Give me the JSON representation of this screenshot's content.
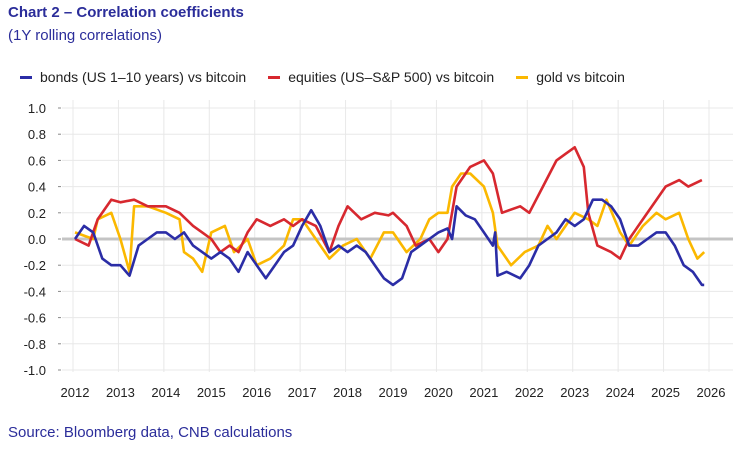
{
  "title": "Chart 2 – Correlation coefficients",
  "subtitle": "(1Y rolling correlations)",
  "source": "Source: Bloomberg data, CNB calculations",
  "chart_data": {
    "type": "line",
    "title": "Chart 2 – Correlation coefficients",
    "subtitle": "(1Y rolling correlations)",
    "xlabel": "",
    "ylabel": "",
    "xlim": [
      2011.7,
      2026.4
    ],
    "ylim": [
      -1.0,
      1.0
    ],
    "x_ticks": [
      "2012",
      "2013",
      "2014",
      "2015",
      "2016",
      "2017",
      "2018",
      "2019",
      "2020",
      "2021",
      "2022",
      "2023",
      "2024",
      "2025",
      "2026"
    ],
    "y_ticks": [
      "1.0",
      "0.8",
      "0.6",
      "0.4",
      "0.2",
      "0.0",
      "-0.2",
      "-0.4",
      "-0.6",
      "-0.8",
      "-1.0"
    ],
    "grid": true,
    "legend_position": "top",
    "series": [
      {
        "name": "bonds (US 1–10 years) vs bitcoin",
        "color": "#2b2da6",
        "x": [
          2012.0,
          2012.2,
          2012.4,
          2012.6,
          2012.8,
          2013.0,
          2013.2,
          2013.4,
          2013.6,
          2013.8,
          2014.0,
          2014.2,
          2014.4,
          2014.6,
          2014.8,
          2015.0,
          2015.2,
          2015.4,
          2015.6,
          2015.8,
          2016.0,
          2016.2,
          2016.4,
          2016.6,
          2016.8,
          2017.0,
          2017.2,
          2017.4,
          2017.6,
          2017.8,
          2018.0,
          2018.2,
          2018.4,
          2018.6,
          2018.8,
          2019.0,
          2019.2,
          2019.4,
          2019.6,
          2019.8,
          2020.0,
          2020.2,
          2020.3,
          2020.4,
          2020.6,
          2020.8,
          2021.0,
          2021.2,
          2021.25,
          2021.3,
          2021.5,
          2021.8,
          2022.0,
          2022.2,
          2022.4,
          2022.6,
          2022.8,
          2023.0,
          2023.2,
          2023.4,
          2023.6,
          2023.8,
          2024.0,
          2024.2,
          2024.4,
          2024.6,
          2024.8,
          2025.0,
          2025.2,
          2025.4,
          2025.6,
          2025.8,
          2025.85
        ],
        "y": [
          0.0,
          0.1,
          0.05,
          -0.15,
          -0.2,
          -0.2,
          -0.28,
          -0.05,
          0.0,
          0.05,
          0.05,
          0.0,
          0.05,
          -0.05,
          -0.1,
          -0.15,
          -0.1,
          -0.15,
          -0.25,
          -0.1,
          -0.2,
          -0.3,
          -0.2,
          -0.1,
          -0.05,
          0.1,
          0.22,
          0.1,
          -0.1,
          -0.05,
          -0.1,
          -0.05,
          -0.1,
          -0.2,
          -0.3,
          -0.35,
          -0.3,
          -0.1,
          -0.05,
          0.0,
          0.05,
          0.08,
          0.0,
          0.25,
          0.18,
          0.15,
          0.05,
          -0.05,
          0.05,
          -0.28,
          -0.25,
          -0.3,
          -0.2,
          -0.05,
          0.0,
          0.05,
          0.15,
          0.1,
          0.15,
          0.3,
          0.3,
          0.25,
          0.15,
          -0.05,
          -0.05,
          0.0,
          0.05,
          0.05,
          -0.05,
          -0.2,
          -0.25,
          -0.35,
          -0.35
        ]
      },
      {
        "name": "equities (US–S&P 500) vs bitcoin",
        "color": "#d7282f",
        "x": [
          2012.0,
          2012.3,
          2012.5,
          2012.8,
          2013.0,
          2013.3,
          2013.6,
          2014.0,
          2014.3,
          2014.6,
          2014.8,
          2015.0,
          2015.2,
          2015.4,
          2015.6,
          2015.8,
          2016.0,
          2016.3,
          2016.6,
          2016.8,
          2017.0,
          2017.3,
          2017.6,
          2017.8,
          2018.0,
          2018.3,
          2018.6,
          2018.9,
          2019.0,
          2019.3,
          2019.5,
          2019.8,
          2020.0,
          2020.2,
          2020.4,
          2020.7,
          2021.0,
          2021.2,
          2021.4,
          2021.8,
          2022.0,
          2022.3,
          2022.6,
          2022.8,
          2023.0,
          2023.2,
          2023.3,
          2023.5,
          2023.8,
          2024.0,
          2024.2,
          2024.5,
          2024.8,
          2025.0,
          2025.3,
          2025.5,
          2025.8
        ],
        "y": [
          0.0,
          -0.05,
          0.15,
          0.3,
          0.28,
          0.3,
          0.25,
          0.25,
          0.2,
          0.1,
          0.05,
          0.0,
          -0.1,
          -0.05,
          -0.1,
          0.05,
          0.15,
          0.1,
          0.15,
          0.1,
          0.15,
          0.1,
          -0.1,
          0.1,
          0.25,
          0.15,
          0.2,
          0.18,
          0.2,
          0.1,
          -0.05,
          0.0,
          -0.1,
          0.0,
          0.4,
          0.55,
          0.6,
          0.5,
          0.2,
          0.25,
          0.2,
          0.4,
          0.6,
          0.65,
          0.7,
          0.55,
          0.2,
          -0.05,
          -0.1,
          -0.15,
          0.0,
          0.15,
          0.3,
          0.4,
          0.45,
          0.4,
          0.45
        ]
      },
      {
        "name": "gold vs bitcoin",
        "color": "#fbb800",
        "x": [
          2012.0,
          2012.4,
          2012.5,
          2012.8,
          2013.0,
          2013.2,
          2013.3,
          2013.6,
          2014.0,
          2014.3,
          2014.4,
          2014.6,
          2014.8,
          2015.0,
          2015.3,
          2015.5,
          2015.8,
          2016.0,
          2016.3,
          2016.6,
          2016.8,
          2017.0,
          2017.3,
          2017.6,
          2017.9,
          2018.2,
          2018.5,
          2018.8,
          2019.0,
          2019.3,
          2019.6,
          2019.8,
          2020.0,
          2020.2,
          2020.3,
          2020.5,
          2020.7,
          2021.0,
          2021.2,
          2021.3,
          2021.6,
          2021.9,
          2022.2,
          2022.4,
          2022.6,
          2022.8,
          2023.0,
          2023.3,
          2023.5,
          2023.7,
          2024.0,
          2024.2,
          2024.5,
          2024.8,
          2025.0,
          2025.3,
          2025.5,
          2025.7,
          2025.85
        ],
        "y": [
          0.05,
          0.0,
          0.15,
          0.2,
          0.0,
          -0.25,
          0.25,
          0.25,
          0.2,
          0.15,
          -0.1,
          -0.15,
          -0.25,
          0.05,
          0.1,
          -0.1,
          0.0,
          -0.2,
          -0.15,
          -0.05,
          0.15,
          0.15,
          0.0,
          -0.15,
          -0.05,
          0.0,
          -0.15,
          0.05,
          0.05,
          -0.1,
          0.0,
          0.15,
          0.2,
          0.2,
          0.4,
          0.5,
          0.5,
          0.4,
          0.2,
          -0.05,
          -0.2,
          -0.1,
          -0.05,
          0.1,
          0.0,
          0.1,
          0.2,
          0.15,
          0.1,
          0.3,
          0.05,
          -0.05,
          0.1,
          0.2,
          0.15,
          0.2,
          0.0,
          -0.15,
          -0.1
        ]
      }
    ]
  }
}
